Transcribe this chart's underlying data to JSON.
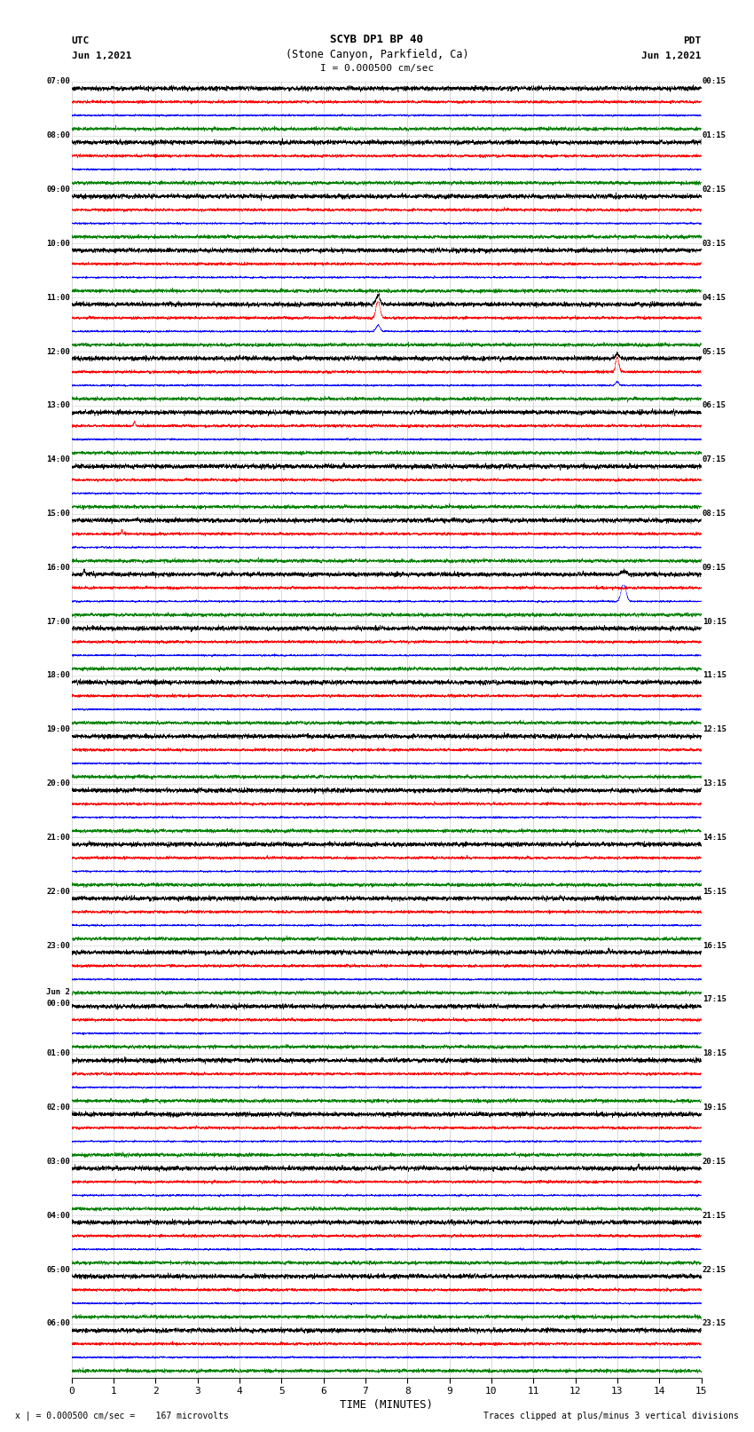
{
  "title_line1": "SCYB DP1 BP 40",
  "title_line2": "(Stone Canyon, Parkfield, Ca)",
  "scale_label": "I = 0.000500 cm/sec",
  "utc_label": "UTC",
  "utc_date": "Jun 1,2021",
  "pdt_label": "PDT",
  "pdt_date": "Jun 1,2021",
  "bottom_left": "x | = 0.000500 cm/sec =    167 microvolts",
  "bottom_right": "Traces clipped at plus/minus 3 vertical divisions",
  "xlabel": "TIME (MINUTES)",
  "num_rows": 24,
  "colors": [
    "black",
    "red",
    "blue",
    "green"
  ],
  "background_color": "white",
  "grid_color": "#bbbbbb",
  "fig_width": 8.5,
  "fig_height": 16.13,
  "dpi": 100,
  "xmin": 0,
  "xmax": 15,
  "x_ticks": [
    0,
    1,
    2,
    3,
    4,
    5,
    6,
    7,
    8,
    9,
    10,
    11,
    12,
    13,
    14,
    15
  ],
  "left_time_labels": [
    "07:00",
    "08:00",
    "09:00",
    "10:00",
    "11:00",
    "12:00",
    "13:00",
    "14:00",
    "15:00",
    "16:00",
    "17:00",
    "18:00",
    "19:00",
    "20:00",
    "21:00",
    "22:00",
    "23:00",
    "Jun 2\n00:00",
    "01:00",
    "02:00",
    "03:00",
    "04:00",
    "05:00",
    "06:00"
  ],
  "right_time_labels": [
    "00:15",
    "01:15",
    "02:15",
    "03:15",
    "04:15",
    "05:15",
    "06:15",
    "07:15",
    "08:15",
    "09:15",
    "10:15",
    "11:15",
    "12:15",
    "13:15",
    "14:15",
    "15:15",
    "16:15",
    "17:15",
    "18:15",
    "19:15",
    "20:15",
    "21:15",
    "22:15",
    "23:15"
  ],
  "noise_amp_black": 0.28,
  "noise_amp_red": 0.18,
  "noise_amp_blue": 0.12,
  "noise_amp_green": 0.22,
  "trace_lw": 0.35,
  "event_rows_red_large": [
    4,
    5
  ],
  "event_row_red_large_minutes": [
    7.3,
    13.0
  ],
  "event_row_blue_large": 9,
  "event_row_blue_minute": 13.15,
  "event_small_red_row6_minute": 1.5,
  "event_small_red_row8_minute": 1.2,
  "event_small_black_row9_minute": 0.3,
  "event_small_black_row16_minute": 12.8,
  "event_small_black_row20_minute": 13.5,
  "event_small_black_row22_minute": 7.5
}
